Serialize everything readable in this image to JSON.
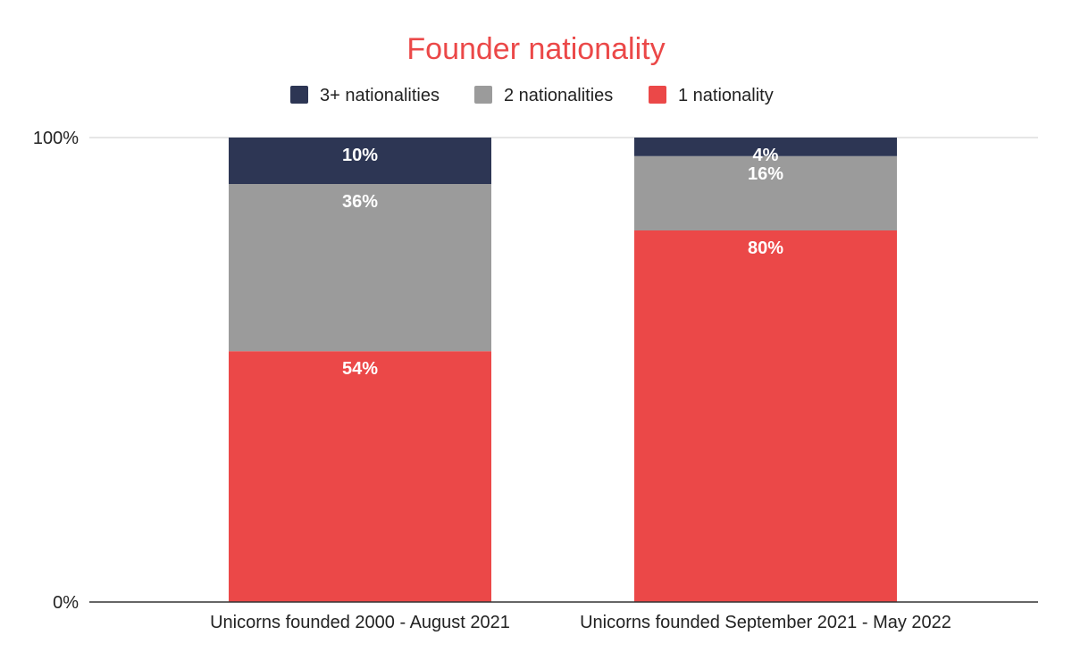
{
  "chart_data": {
    "type": "bar",
    "stacked": true,
    "normalized": true,
    "title": "Founder nationality",
    "xlabel": "",
    "ylabel": "",
    "ylim": [
      0,
      100
    ],
    "y_ticks": [
      {
        "value": 0,
        "label": "0%"
      },
      {
        "value": 100,
        "label": "100%"
      }
    ],
    "categories": [
      "Unicorns founded 2000 - August 2021",
      "Unicorns founded September 2021 - May 2022"
    ],
    "series": [
      {
        "name": "1 nationality",
        "values": [
          54,
          80
        ],
        "labels": [
          "54%",
          "80%"
        ],
        "color": "#eb4848"
      },
      {
        "name": "2 nationalities",
        "values": [
          36,
          16
        ],
        "labels": [
          "36%",
          "16%"
        ],
        "color": "#9b9b9b"
      },
      {
        "name": "3+ nationalities",
        "values": [
          10,
          4
        ],
        "labels": [
          "10%",
          "4%"
        ],
        "color": "#2d3654"
      }
    ],
    "legend_order": [
      "3+ nationalities",
      "2 nationalities",
      "1 nationality"
    ],
    "legend_position": "top-center",
    "grid": true,
    "colors": {
      "title": "#eb4848",
      "gridline": "#cccccc",
      "axis": "#333333"
    }
  }
}
